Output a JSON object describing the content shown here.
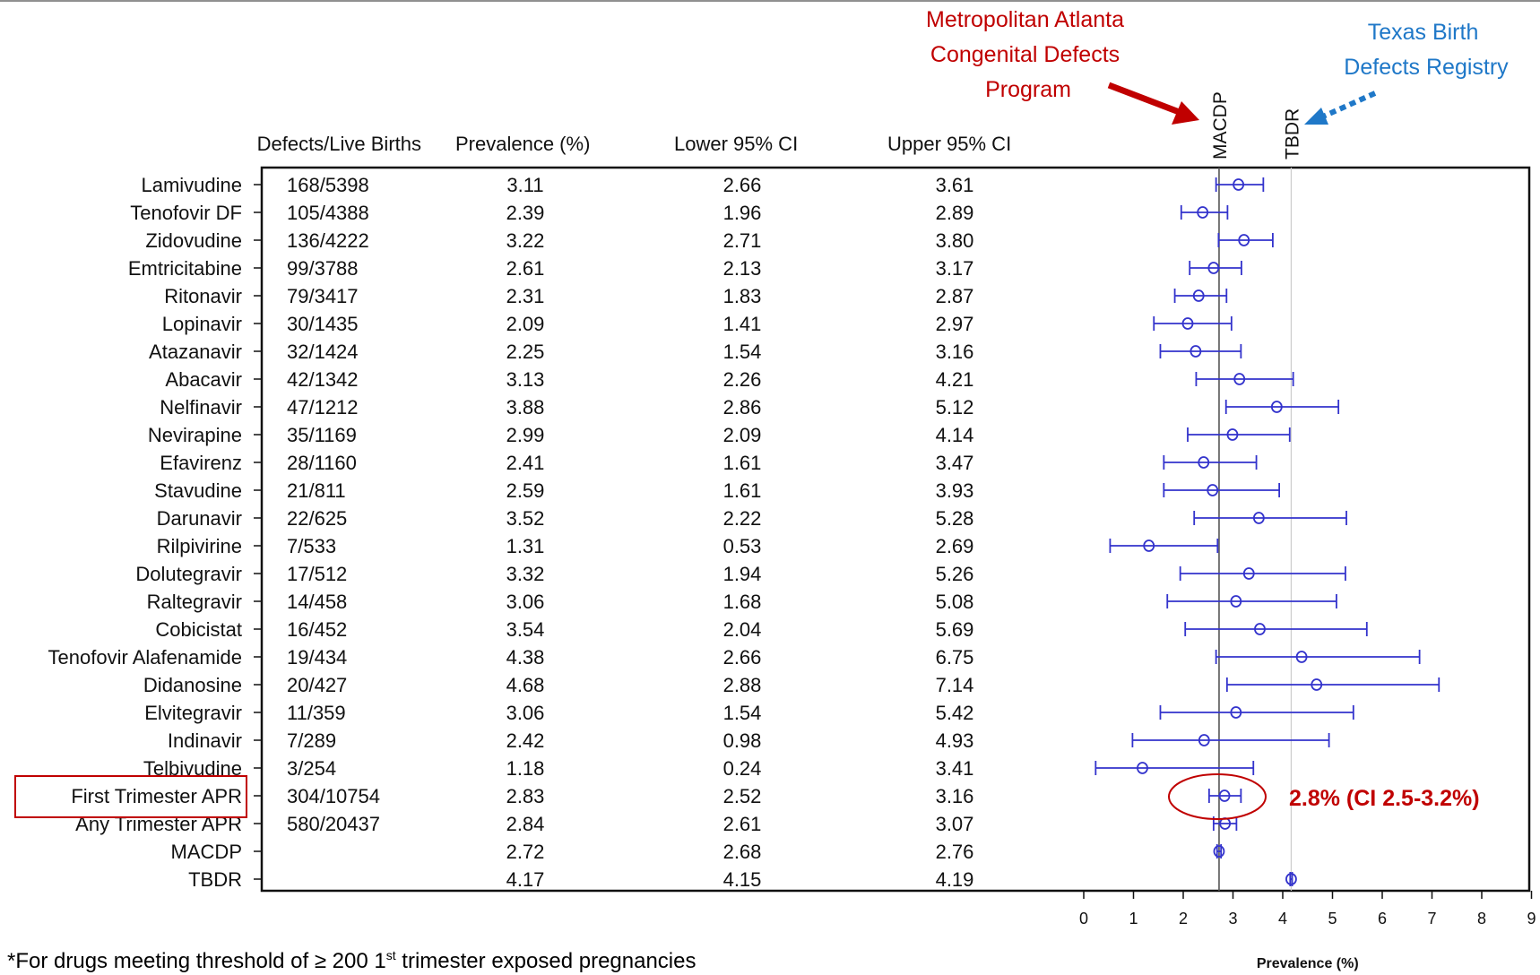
{
  "chart_data": {
    "type": "forest",
    "columns": [
      "Defects/Live Births",
      "Prevalence (%)",
      "Lower 95% CI",
      "Upper 95% CI"
    ],
    "rows": [
      {
        "label": "Lamivudine",
        "defects": "168/5398",
        "prev": "3.11",
        "lo": "2.66",
        "hi": "3.61"
      },
      {
        "label": "Tenofovir DF",
        "defects": "105/4388",
        "prev": "2.39",
        "lo": "1.96",
        "hi": "2.89"
      },
      {
        "label": "Zidovudine",
        "defects": "136/4222",
        "prev": "3.22",
        "lo": "2.71",
        "hi": "3.80"
      },
      {
        "label": "Emtricitabine",
        "defects": "99/3788",
        "prev": "2.61",
        "lo": "2.13",
        "hi": "3.17"
      },
      {
        "label": "Ritonavir",
        "defects": "79/3417",
        "prev": "2.31",
        "lo": "1.83",
        "hi": "2.87"
      },
      {
        "label": "Lopinavir",
        "defects": "30/1435",
        "prev": "2.09",
        "lo": "1.41",
        "hi": "2.97"
      },
      {
        "label": "Atazanavir",
        "defects": "32/1424",
        "prev": "2.25",
        "lo": "1.54",
        "hi": "3.16"
      },
      {
        "label": "Abacavir",
        "defects": "42/1342",
        "prev": "3.13",
        "lo": "2.26",
        "hi": "4.21"
      },
      {
        "label": "Nelfinavir",
        "defects": "47/1212",
        "prev": "3.88",
        "lo": "2.86",
        "hi": "5.12"
      },
      {
        "label": "Nevirapine",
        "defects": "35/1169",
        "prev": "2.99",
        "lo": "2.09",
        "hi": "4.14"
      },
      {
        "label": "Efavirenz",
        "defects": "28/1160",
        "prev": "2.41",
        "lo": "1.61",
        "hi": "3.47"
      },
      {
        "label": "Stavudine",
        "defects": "21/811",
        "prev": "2.59",
        "lo": "1.61",
        "hi": "3.93"
      },
      {
        "label": "Darunavir",
        "defects": "22/625",
        "prev": "3.52",
        "lo": "2.22",
        "hi": "5.28"
      },
      {
        "label": "Rilpivirine",
        "defects": "7/533",
        "prev": "1.31",
        "lo": "0.53",
        "hi": "2.69"
      },
      {
        "label": "Dolutegravir",
        "defects": "17/512",
        "prev": "3.32",
        "lo": "1.94",
        "hi": "5.26"
      },
      {
        "label": "Raltegravir",
        "defects": "14/458",
        "prev": "3.06",
        "lo": "1.68",
        "hi": "5.08"
      },
      {
        "label": "Cobicistat",
        "defects": "16/452",
        "prev": "3.54",
        "lo": "2.04",
        "hi": "5.69"
      },
      {
        "label": "Tenofovir Alafenamide",
        "defects": "19/434",
        "prev": "4.38",
        "lo": "2.66",
        "hi": "6.75"
      },
      {
        "label": "Didanosine",
        "defects": "20/427",
        "prev": "4.68",
        "lo": "2.88",
        "hi": "7.14"
      },
      {
        "label": "Elvitegravir",
        "defects": "11/359",
        "prev": "3.06",
        "lo": "1.54",
        "hi": "5.42"
      },
      {
        "label": "Indinavir",
        "defects": "7/289",
        "prev": "2.42",
        "lo": "0.98",
        "hi": "4.93"
      },
      {
        "label": "Telbivudine",
        "defects": "3/254",
        "prev": "1.18",
        "lo": "0.24",
        "hi": "3.41"
      },
      {
        "label": "First Trimester APR",
        "defects": "304/10754",
        "prev": "2.83",
        "lo": "2.52",
        "hi": "3.16"
      },
      {
        "label": "Any Trimester APR",
        "defects": "580/20437",
        "prev": "2.84",
        "lo": "2.61",
        "hi": "3.07"
      },
      {
        "label": "MACDP",
        "defects": "",
        "prev": "2.72",
        "lo": "2.68",
        "hi": "2.76"
      },
      {
        "label": "TBDR",
        "defects": "",
        "prev": "4.17",
        "lo": "4.15",
        "hi": "4.19"
      }
    ],
    "x_ticks": [
      "0",
      "1",
      "2",
      "3",
      "4",
      "5",
      "6",
      "7",
      "8",
      "9"
    ],
    "xlim": [
      0,
      9
    ],
    "xlabel": "Prevalence (%)",
    "ref_lines": [
      {
        "label": "MACDP",
        "value": 2.72
      },
      {
        "label": "TBDR",
        "value": 4.17
      }
    ],
    "highlight_row": "First Trimester APR",
    "annotations": {
      "macdp_callout": [
        "Metropolitan Atlanta",
        "Congenital Defects",
        "Program"
      ],
      "tbdr_callout": [
        "Texas Birth",
        "Defects Registry"
      ],
      "ci_callout": "2.8% (CI 2.5-3.2%)"
    },
    "colors": {
      "marker": "#3333cc",
      "callout_red": "#c00000",
      "callout_blue": "#1f78c8",
      "text": "#111111"
    }
  },
  "footnote": {
    "prefix": "*For drugs meeting threshold of ≥ 200 1",
    "sup": "st",
    "suffix": " trimester exposed pregnancies"
  }
}
